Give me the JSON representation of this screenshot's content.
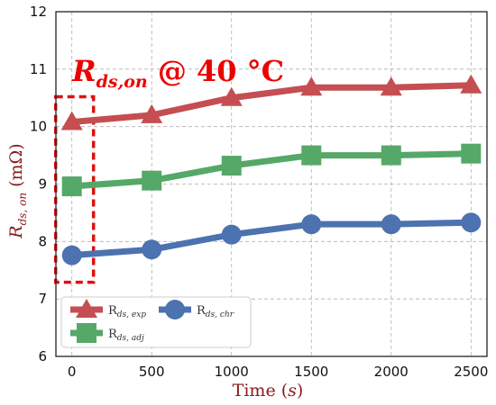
{
  "chart_data": {
    "type": "line",
    "x": [
      0,
      500,
      1000,
      1500,
      2000,
      2500
    ],
    "xlim": [
      -100,
      2600
    ],
    "ylim": [
      6,
      12
    ],
    "xticks": [
      "0",
      "500",
      "1000",
      "1500",
      "2000",
      "2500"
    ],
    "yticks": [
      "6",
      "7",
      "8",
      "9",
      "10",
      "11",
      "12"
    ],
    "xlabel": {
      "main": "Time (",
      "var": "s",
      "end": ")"
    },
    "ylabel": {
      "main": "R",
      "sub": "ds, on",
      "rest": " (mΩ)"
    },
    "grid": true,
    "annotation": {
      "main": "R",
      "sub": "ds,on",
      "rest": " @ 40 °C"
    },
    "legend_position": "lower-left",
    "series": [
      {
        "name_main": "R",
        "name_sub": "ds, exp",
        "marker": "triangle",
        "color": "#c44e52",
        "values": [
          10.08,
          10.2,
          10.5,
          10.68,
          10.68,
          10.72
        ]
      },
      {
        "name_main": "R",
        "name_sub": "ds, adj",
        "marker": "square",
        "color": "#55a868",
        "values": [
          8.96,
          9.06,
          9.32,
          9.5,
          9.5,
          9.53
        ]
      },
      {
        "name_main": "R",
        "name_sub": "ds, chr",
        "marker": "circle",
        "color": "#4c72b0",
        "values": [
          7.76,
          7.86,
          8.12,
          8.3,
          8.3,
          8.33
        ]
      }
    ],
    "highlight_box_color": "#dd1111"
  }
}
